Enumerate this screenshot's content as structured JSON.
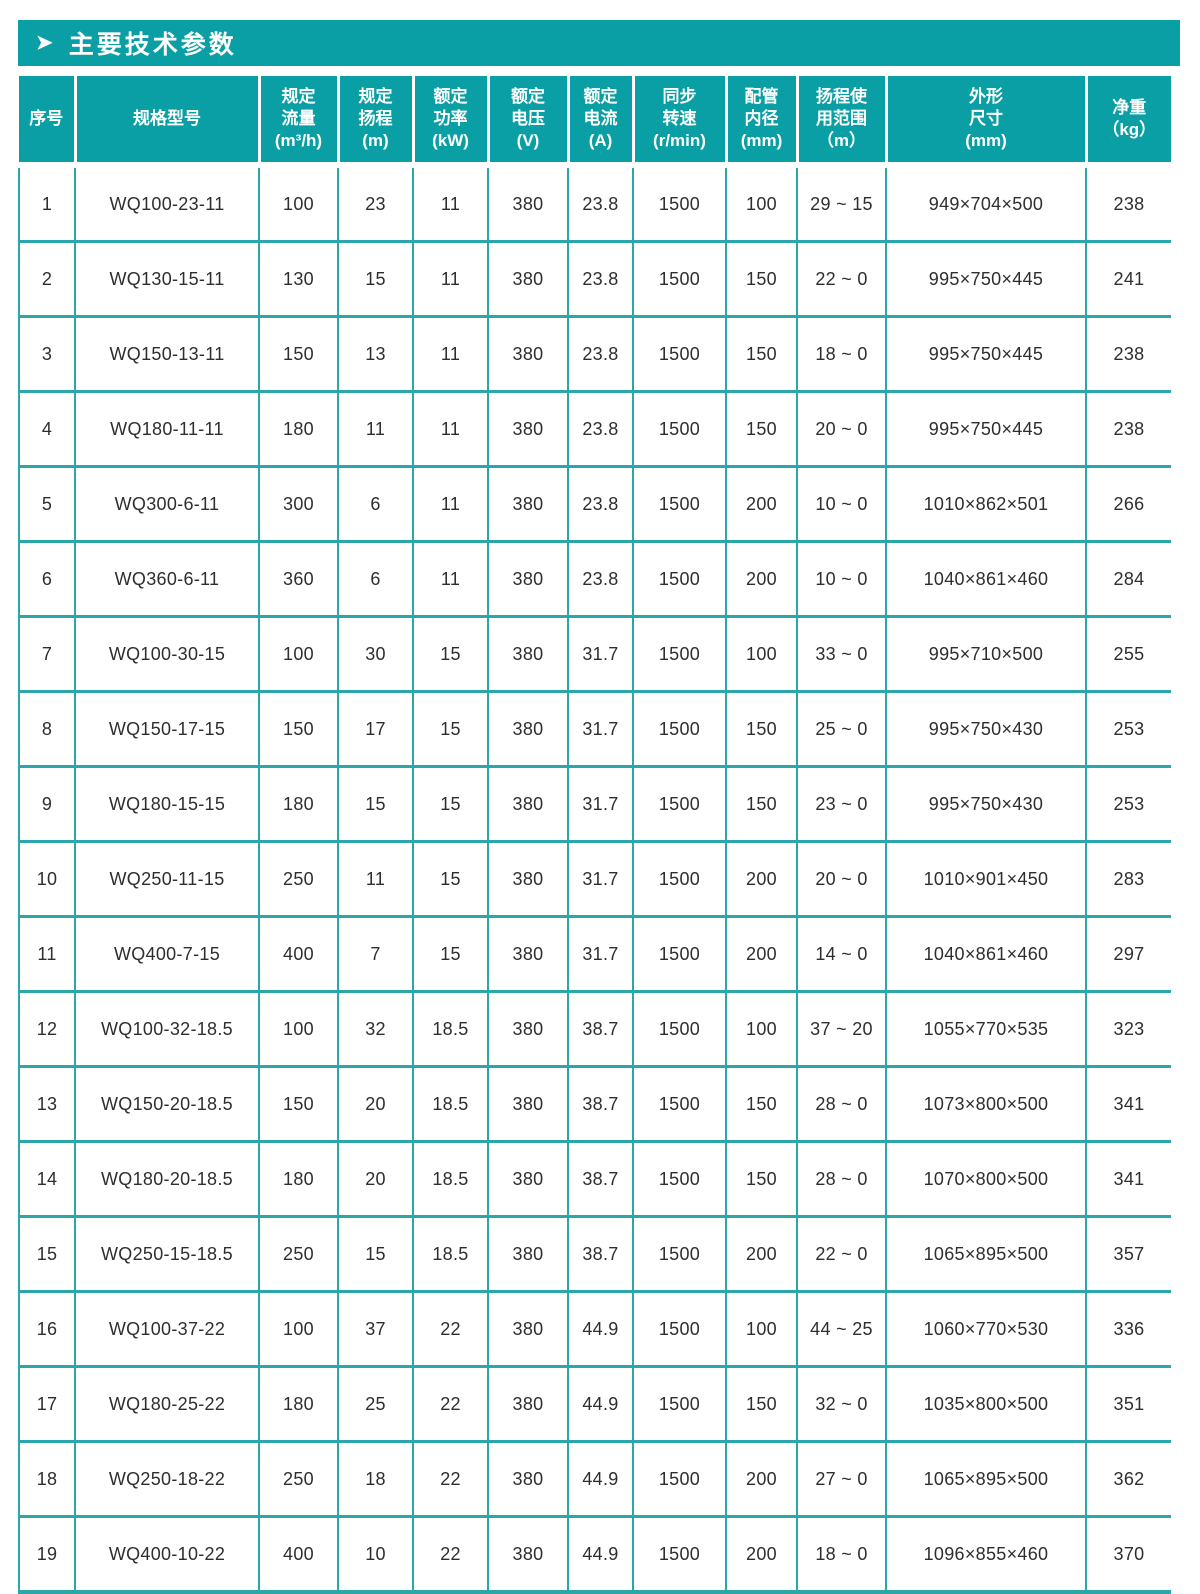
{
  "colors": {
    "accent_teal": "#0A9FA4",
    "grid_teal": "#2BA6AB",
    "header_text": "#FFFFFF",
    "body_text": "#2E2E2E"
  },
  "title": {
    "arrow_icon": "➤",
    "text": "主要技术参数"
  },
  "table": {
    "headers": [
      {
        "id": "index",
        "label": "序号"
      },
      {
        "id": "model",
        "label": "规格型号"
      },
      {
        "id": "rated_flow",
        "label": "规定\n流量\n(m³/h)"
      },
      {
        "id": "rated_head",
        "label": "规定\n扬程\n(m)"
      },
      {
        "id": "rated_power",
        "label": "额定\n功率\n(kW)"
      },
      {
        "id": "rated_voltage",
        "label": "额定\n电压\n(V)"
      },
      {
        "id": "rated_current",
        "label": "额定\n电流\n(A)"
      },
      {
        "id": "sync_speed",
        "label": "同步\n转速\n(r/min)"
      },
      {
        "id": "pipe_diameter",
        "label": "配管\n内径\n(mm)"
      },
      {
        "id": "head_range",
        "label": "扬程使\n用范围\n（m）"
      },
      {
        "id": "dimensions",
        "label": "外形\n尺寸\n(mm)"
      },
      {
        "id": "net_weight",
        "label": "净重\n（kg）"
      }
    ],
    "rows": [
      [
        "1",
        "WQ100-23-11",
        "100",
        "23",
        "11",
        "380",
        "23.8",
        "1500",
        "100",
        "29 ~ 15",
        "949×704×500",
        "238"
      ],
      [
        "2",
        "WQ130-15-11",
        "130",
        "15",
        "11",
        "380",
        "23.8",
        "1500",
        "150",
        "22 ~ 0",
        "995×750×445",
        "241"
      ],
      [
        "3",
        "WQ150-13-11",
        "150",
        "13",
        "11",
        "380",
        "23.8",
        "1500",
        "150",
        "18 ~ 0",
        "995×750×445",
        "238"
      ],
      [
        "4",
        "WQ180-11-11",
        "180",
        "11",
        "11",
        "380",
        "23.8",
        "1500",
        "150",
        "20 ~ 0",
        "995×750×445",
        "238"
      ],
      [
        "5",
        "WQ300-6-11",
        "300",
        "6",
        "11",
        "380",
        "23.8",
        "1500",
        "200",
        "10 ~ 0",
        "1010×862×501",
        "266"
      ],
      [
        "6",
        "WQ360-6-11",
        "360",
        "6",
        "11",
        "380",
        "23.8",
        "1500",
        "200",
        "10 ~ 0",
        "1040×861×460",
        "284"
      ],
      [
        "7",
        "WQ100-30-15",
        "100",
        "30",
        "15",
        "380",
        "31.7",
        "1500",
        "100",
        "33 ~ 0",
        "995×710×500",
        "255"
      ],
      [
        "8",
        "WQ150-17-15",
        "150",
        "17",
        "15",
        "380",
        "31.7",
        "1500",
        "150",
        "25 ~ 0",
        "995×750×430",
        "253"
      ],
      [
        "9",
        "WQ180-15-15",
        "180",
        "15",
        "15",
        "380",
        "31.7",
        "1500",
        "150",
        "23 ~ 0",
        "995×750×430",
        "253"
      ],
      [
        "10",
        "WQ250-11-15",
        "250",
        "11",
        "15",
        "380",
        "31.7",
        "1500",
        "200",
        "20 ~ 0",
        "1010×901×450",
        "283"
      ],
      [
        "11",
        "WQ400-7-15",
        "400",
        "7",
        "15",
        "380",
        "31.7",
        "1500",
        "200",
        "14 ~ 0",
        "1040×861×460",
        "297"
      ],
      [
        "12",
        "WQ100-32-18.5",
        "100",
        "32",
        "18.5",
        "380",
        "38.7",
        "1500",
        "100",
        "37 ~ 20",
        "1055×770×535",
        "323"
      ],
      [
        "13",
        "WQ150-20-18.5",
        "150",
        "20",
        "18.5",
        "380",
        "38.7",
        "1500",
        "150",
        "28 ~ 0",
        "1073×800×500",
        "341"
      ],
      [
        "14",
        "WQ180-20-18.5",
        "180",
        "20",
        "18.5",
        "380",
        "38.7",
        "1500",
        "150",
        "28 ~ 0",
        "1070×800×500",
        "341"
      ],
      [
        "15",
        "WQ250-15-18.5",
        "250",
        "15",
        "18.5",
        "380",
        "38.7",
        "1500",
        "200",
        "22 ~ 0",
        "1065×895×500",
        "357"
      ],
      [
        "16",
        "WQ100-37-22",
        "100",
        "37",
        "22",
        "380",
        "44.9",
        "1500",
        "100",
        "44 ~ 25",
        "1060×770×530",
        "336"
      ],
      [
        "17",
        "WQ180-25-22",
        "180",
        "25",
        "22",
        "380",
        "44.9",
        "1500",
        "150",
        "32 ~ 0",
        "1035×800×500",
        "351"
      ],
      [
        "18",
        "WQ250-18-22",
        "250",
        "18",
        "22",
        "380",
        "44.9",
        "1500",
        "200",
        "27 ~ 0",
        "1065×895×500",
        "362"
      ],
      [
        "19",
        "WQ400-10-22",
        "400",
        "10",
        "22",
        "380",
        "44.9",
        "1500",
        "200",
        "18 ~ 0",
        "1096×855×460",
        "370"
      ]
    ]
  }
}
